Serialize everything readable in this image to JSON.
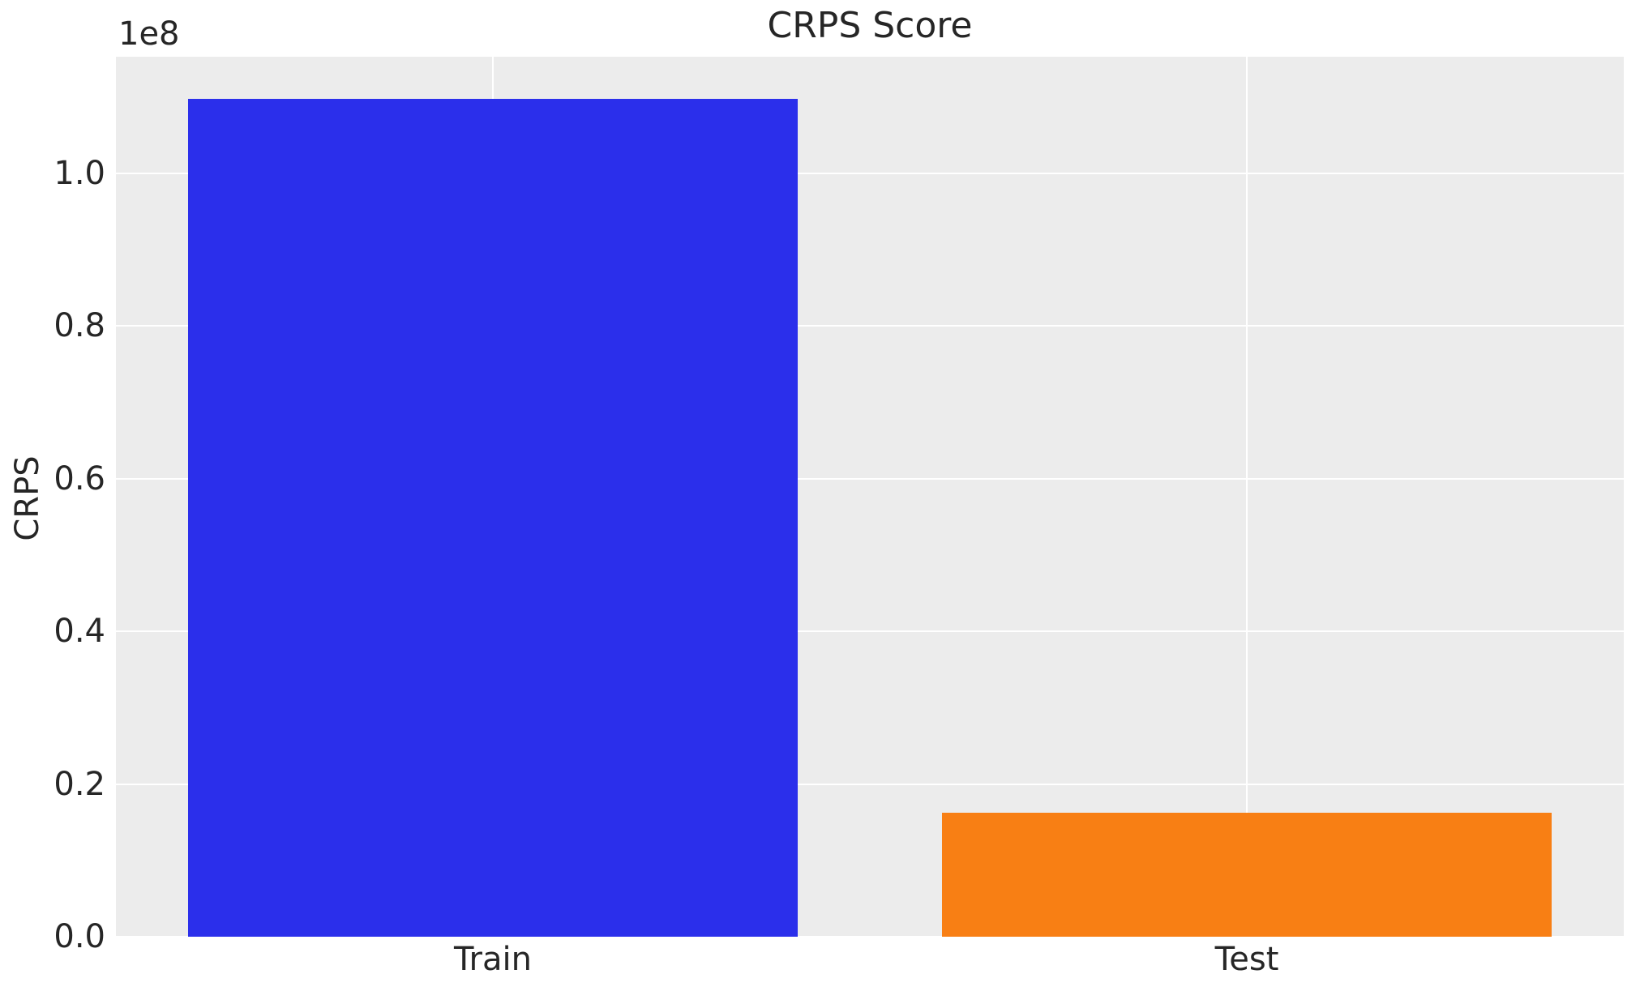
{
  "chart_data": {
    "type": "bar",
    "title": "CRPS Score",
    "xlabel": "",
    "ylabel": "CRPS",
    "offset_text": "1e8",
    "categories": [
      "Train",
      "Test"
    ],
    "values": [
      109800000,
      16200000
    ],
    "bar_colors": [
      "#2b2feb",
      "#f87f14"
    ],
    "ylim": [
      0,
      115300000
    ],
    "yticks": [
      {
        "value": 0,
        "label": "0.0"
      },
      {
        "value": 20000000,
        "label": "0.2"
      },
      {
        "value": 40000000,
        "label": "0.4"
      },
      {
        "value": 60000000,
        "label": "0.6"
      },
      {
        "value": 80000000,
        "label": "0.8"
      },
      {
        "value": 100000000,
        "label": "1.0"
      }
    ],
    "grid": "on",
    "legend": "none",
    "bar_width_fraction": 0.404,
    "colors": {
      "plot_background": "#ececec",
      "gridline": "#ffffff",
      "text": "#262626",
      "figure_background": "#ffffff"
    }
  }
}
